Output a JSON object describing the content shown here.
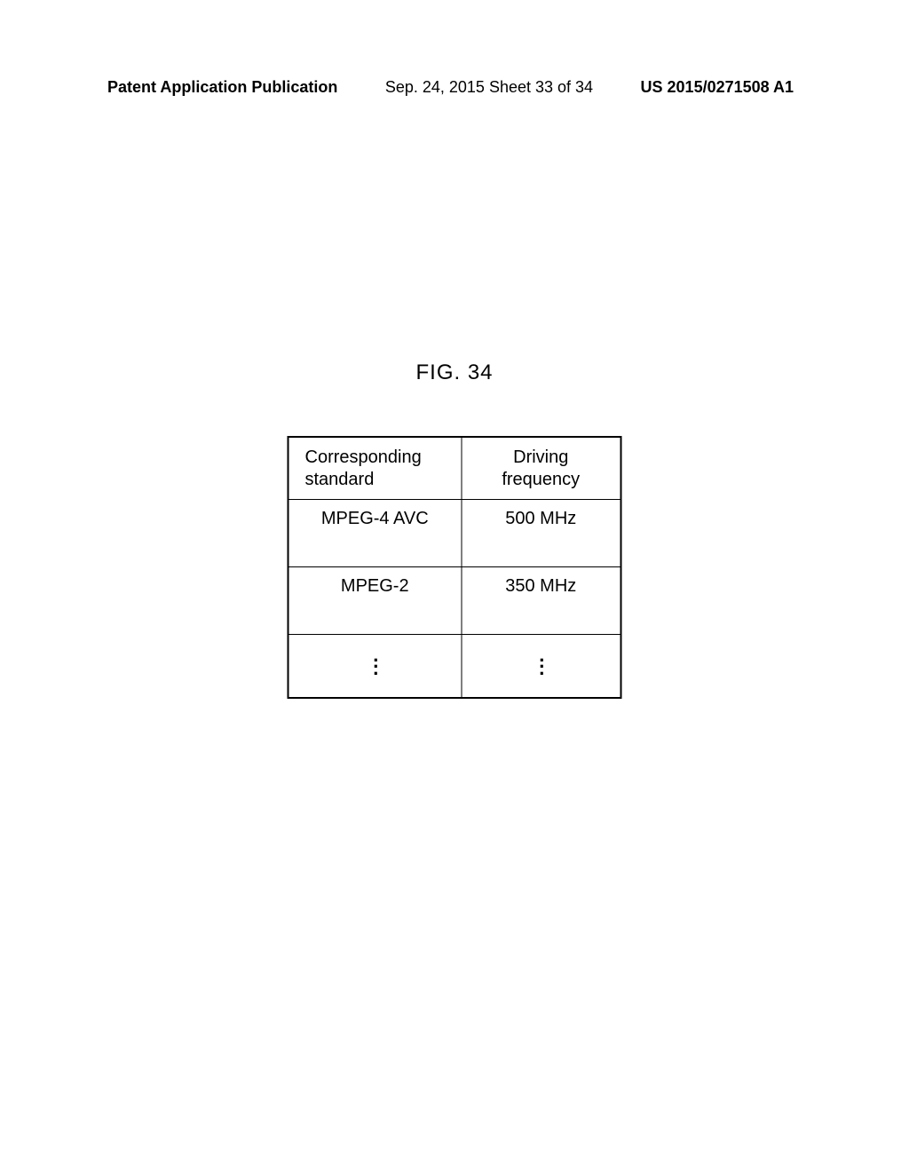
{
  "header": {
    "left": "Patent Application Publication",
    "center": "Sep. 24, 2015  Sheet 33 of 34",
    "right": "US 2015/0271508 A1"
  },
  "figure": {
    "title": "FIG. 34"
  },
  "table": {
    "columns": [
      {
        "key": "standard",
        "header": "Corresponding\nstandard"
      },
      {
        "key": "frequency",
        "header": "Driving\nfrequency"
      }
    ],
    "rows": [
      {
        "standard": "MPEG-4 AVC",
        "frequency": "500 MHz"
      },
      {
        "standard": "MPEG-2",
        "frequency": "350 MHz"
      }
    ],
    "ellipsis_rows": 1,
    "border_color": "#000000",
    "background_color": "#ffffff",
    "font_size": 20
  }
}
